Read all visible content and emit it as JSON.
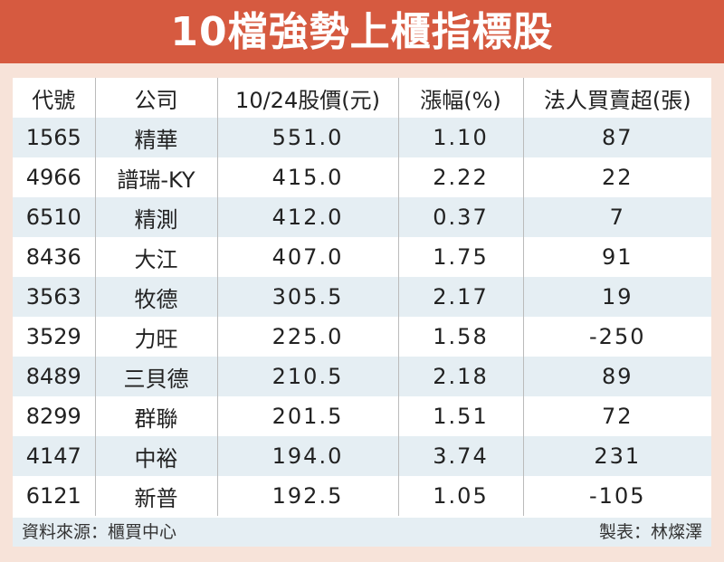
{
  "title": "10檔強勢上櫃指標股",
  "chart_data": {
    "type": "table",
    "title": "10檔強勢上櫃指標股",
    "columns": [
      "代號",
      "公司",
      "10/24股價(元)",
      "漲幅(%)",
      "法人買賣超(張)"
    ],
    "rows": [
      [
        "1565",
        "精華",
        "551.0",
        "1.10",
        "87"
      ],
      [
        "4966",
        "譜瑞-KY",
        "415.0",
        "2.22",
        "22"
      ],
      [
        "6510",
        "精測",
        "412.0",
        "0.37",
        "7"
      ],
      [
        "8436",
        "大江",
        "407.0",
        "1.75",
        "91"
      ],
      [
        "3563",
        "牧德",
        "305.5",
        "2.17",
        "19"
      ],
      [
        "3529",
        "力旺",
        "225.0",
        "1.58",
        "-250"
      ],
      [
        "8489",
        "三貝德",
        "210.5",
        "2.18",
        "89"
      ],
      [
        "8299",
        "群聯",
        "201.5",
        "1.51",
        "72"
      ],
      [
        "4147",
        "中裕",
        "194.0",
        "3.74",
        "231"
      ],
      [
        "6121",
        "新普",
        "192.5",
        "1.05",
        "-105"
      ]
    ]
  },
  "footer": {
    "source": "資料來源：櫃買中心",
    "maker": "製表：林燦澤"
  }
}
